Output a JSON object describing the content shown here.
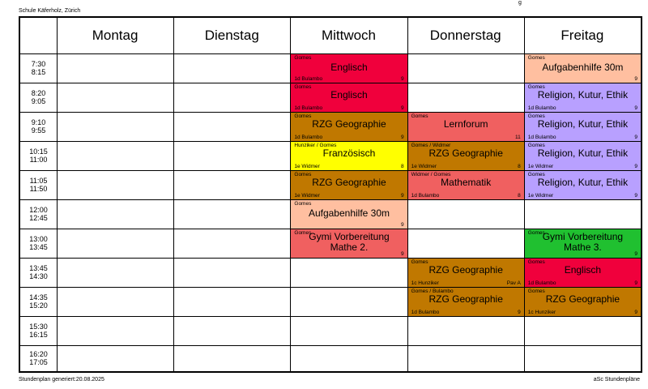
{
  "header": {
    "school": "Schule Käferholz, Zürich",
    "corner_label": "g"
  },
  "footer": {
    "generated": "Stundenplan generiert:20.08.2025",
    "brand": "aSc Stundenpläne"
  },
  "days": [
    "Montag",
    "Dienstag",
    "Mittwoch",
    "Donnerstag",
    "Freitag"
  ],
  "periods": [
    {
      "start": "7:30",
      "end": "8:15"
    },
    {
      "start": "8:20",
      "end": "9:05"
    },
    {
      "start": "9:10",
      "end": "9:55"
    },
    {
      "start": "10:15",
      "end": "11:00"
    },
    {
      "start": "11:05",
      "end": "11:50"
    },
    {
      "start": "12:00",
      "end": "12:45"
    },
    {
      "start": "13:00",
      "end": "13:45"
    },
    {
      "start": "13:45",
      "end": "14:30"
    },
    {
      "start": "14:35",
      "end": "15:20"
    },
    {
      "start": "15:30",
      "end": "16:15"
    },
    {
      "start": "16:20",
      "end": "17:05"
    }
  ],
  "lessons": [
    {
      "day": 2,
      "period": 0,
      "teacher": "Gomes",
      "subject": "Englisch",
      "class": "1d Bulambo",
      "room": "9",
      "color": "#f0003c"
    },
    {
      "day": 2,
      "period": 1,
      "teacher": "Gomes",
      "subject": "Englisch",
      "class": "1d Bulambo",
      "room": "9",
      "color": "#f0003c"
    },
    {
      "day": 2,
      "period": 2,
      "teacher": "Gomes",
      "subject": "RZG Geographie",
      "class": "1d Bulambo",
      "room": "9",
      "color": "#c07800"
    },
    {
      "day": 2,
      "period": 3,
      "teacher": "Hunziker / Gomes",
      "subject": "Französisch",
      "class": "1e Widmer",
      "room": "8",
      "color": "#ffff00"
    },
    {
      "day": 2,
      "period": 4,
      "teacher": "Gomes",
      "subject": "RZG Geographie",
      "class": "1e Widmer",
      "room": "9",
      "color": "#c07800"
    },
    {
      "day": 2,
      "period": 5,
      "teacher": "Gomes",
      "subject": "Aufgabenhilfe 30m",
      "class": "",
      "room": "9",
      "color": "#ffbfa0"
    },
    {
      "day": 2,
      "period": 6,
      "teacher": "Gomes",
      "subject": "Gymi Vorbereitung Mathe 2.",
      "class": "",
      "room": "9",
      "color": "#f06060"
    },
    {
      "day": 3,
      "period": 2,
      "teacher": "Gomes",
      "subject": "Lernforum",
      "class": "",
      "room": "11",
      "color": "#f06060"
    },
    {
      "day": 3,
      "period": 3,
      "teacher": "Gomes / Widmer",
      "subject": "RZG Geographie",
      "class": "1e Widmer",
      "room": "8",
      "color": "#c07800"
    },
    {
      "day": 3,
      "period": 4,
      "teacher": "Widmer / Gomes",
      "subject": "Mathematik",
      "class": "1d Bulambo",
      "room": "8",
      "color": "#f06060"
    },
    {
      "day": 3,
      "period": 7,
      "teacher": "Gomes",
      "subject": "RZG Geographie",
      "class": "1c Hunziker",
      "room": "Pav A",
      "color": "#c07800"
    },
    {
      "day": 3,
      "period": 8,
      "teacher": "Gomes / Bulambo",
      "subject": "RZG Geographie",
      "class": "1d Bulambo",
      "room": "9",
      "color": "#c07800"
    },
    {
      "day": 4,
      "period": 0,
      "teacher": "Gomes",
      "subject": "Aufgabenhilfe 30m",
      "class": "",
      "room": "9",
      "color": "#ffbfa0"
    },
    {
      "day": 4,
      "period": 1,
      "teacher": "Gomes",
      "subject": "Religion, Kutur, Ethik",
      "class": "1d Bulambo",
      "room": "9",
      "color": "#b8a0ff"
    },
    {
      "day": 4,
      "period": 2,
      "teacher": "Gomes",
      "subject": "Religion, Kutur, Ethik",
      "class": "1d Bulambo",
      "room": "9",
      "color": "#b8a0ff"
    },
    {
      "day": 4,
      "period": 3,
      "teacher": "Gomes",
      "subject": "Religion, Kutur, Ethik",
      "class": "1e Widmer",
      "room": "9",
      "color": "#b8a0ff"
    },
    {
      "day": 4,
      "period": 4,
      "teacher": "Gomes",
      "subject": "Religion, Kutur, Ethik",
      "class": "1e Widmer",
      "room": "9",
      "color": "#b8a0ff"
    },
    {
      "day": 4,
      "period": 6,
      "teacher": "Gomes",
      "subject": "Gymi Vorbereitung Mathe 3.",
      "class": "",
      "room": "9",
      "color": "#20c030"
    },
    {
      "day": 4,
      "period": 7,
      "teacher": "Gomes",
      "subject": "Englisch",
      "class": "1d Bulambo",
      "room": "9",
      "color": "#f0003c"
    },
    {
      "day": 4,
      "period": 8,
      "teacher": "Gomes",
      "subject": "RZG Geographie",
      "class": "1c Hunziker",
      "room": "9",
      "color": "#c07800"
    }
  ]
}
